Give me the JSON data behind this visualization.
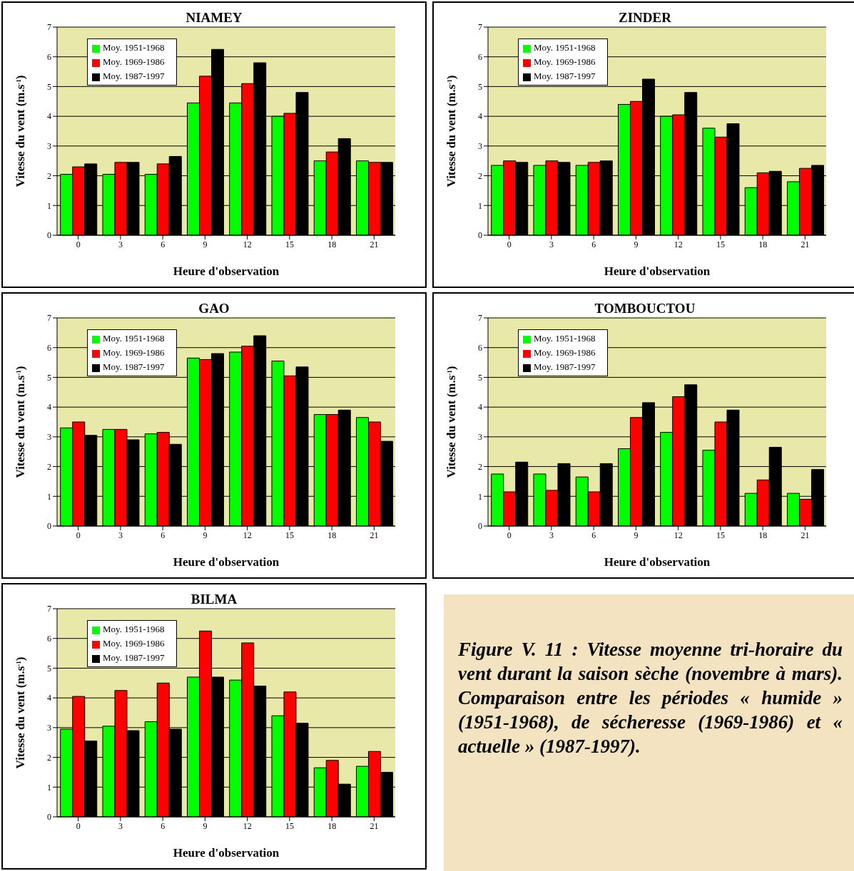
{
  "chart_data": [
    {
      "type": "bar",
      "title": "NIAMEY",
      "xlabel": "Heure d'observation",
      "ylabel": "Vitesse du vent (m.s$^{-1}$)",
      "categories": [
        "0",
        "3",
        "6",
        "9",
        "12",
        "15",
        "18",
        "21"
      ],
      "ylim": [
        0,
        7
      ],
      "yticks": [
        0,
        1,
        2,
        3,
        4,
        5,
        6,
        7
      ],
      "grid": "y",
      "legend": "top left",
      "series": [
        {
          "name": "Moy. 1951-1968",
          "color": "#00ff00",
          "values": [
            2.05,
            2.05,
            2.05,
            4.45,
            4.45,
            4.0,
            2.5,
            2.5
          ]
        },
        {
          "name": "Moy. 1969-1986",
          "color": "#ff0000",
          "values": [
            2.3,
            2.45,
            2.4,
            5.35,
            5.1,
            4.1,
            2.8,
            2.45
          ]
        },
        {
          "name": "Moy. 1987-1997",
          "color": "#000000",
          "values": [
            2.4,
            2.45,
            2.65,
            6.25,
            5.8,
            4.8,
            3.25,
            2.45
          ]
        }
      ]
    },
    {
      "type": "bar",
      "title": "ZINDER",
      "xlabel": "Heure d'observation",
      "ylabel": "Vitesse du vent (m.s$^{-1}$)",
      "categories": [
        "0",
        "3",
        "6",
        "9",
        "12",
        "15",
        "18",
        "21"
      ],
      "ylim": [
        0,
        7
      ],
      "yticks": [
        0,
        1,
        2,
        3,
        4,
        5,
        6,
        7
      ],
      "grid": "y",
      "legend": "top left",
      "series": [
        {
          "name": "Moy. 1951-1968",
          "color": "#00ff00",
          "values": [
            2.35,
            2.35,
            2.35,
            4.4,
            4.0,
            3.6,
            1.6,
            1.8
          ]
        },
        {
          "name": "Moy. 1969-1986",
          "color": "#ff0000",
          "values": [
            2.5,
            2.5,
            2.45,
            4.5,
            4.05,
            3.3,
            2.1,
            2.25
          ]
        },
        {
          "name": "Moy. 1987-1997",
          "color": "#000000",
          "values": [
            2.45,
            2.45,
            2.5,
            5.25,
            4.8,
            3.75,
            2.15,
            2.35
          ]
        }
      ]
    },
    {
      "type": "bar",
      "title": "GAO",
      "xlabel": "Heure d'observation",
      "ylabel": "Vitesse du vent (m.s$^{-1}$)",
      "categories": [
        "0",
        "3",
        "6",
        "9",
        "12",
        "15",
        "18",
        "21"
      ],
      "ylim": [
        0,
        7
      ],
      "yticks": [
        0,
        1,
        2,
        3,
        4,
        5,
        6,
        7
      ],
      "grid": "y",
      "legend": "top left",
      "series": [
        {
          "name": "Moy. 1951-1968",
          "color": "#00ff00",
          "values": [
            3.3,
            3.25,
            3.1,
            5.65,
            5.85,
            5.55,
            3.75,
            3.65
          ]
        },
        {
          "name": "Moy. 1969-1986",
          "color": "#ff0000",
          "values": [
            3.5,
            3.25,
            3.15,
            5.6,
            6.05,
            5.05,
            3.75,
            3.5
          ]
        },
        {
          "name": "Moy. 1987-1997",
          "color": "#000000",
          "values": [
            3.05,
            2.9,
            2.75,
            5.8,
            6.4,
            5.35,
            3.9,
            2.85
          ]
        }
      ]
    },
    {
      "type": "bar",
      "title": "TOMBOUCTOU",
      "xlabel": "Heure d'observation",
      "ylabel": "Vitesse du vent (m.s$^{-1}$)",
      "categories": [
        "0",
        "3",
        "6",
        "9",
        "12",
        "15",
        "18",
        "21"
      ],
      "ylim": [
        0,
        7
      ],
      "yticks": [
        0,
        1,
        2,
        3,
        4,
        5,
        6,
        7
      ],
      "grid": "y",
      "legend": "top left",
      "series": [
        {
          "name": "Moy. 1951-1968",
          "color": "#00ff00",
          "values": [
            1.75,
            1.75,
            1.65,
            2.6,
            3.15,
            2.55,
            1.1,
            1.1
          ]
        },
        {
          "name": "Moy. 1969-1986",
          "color": "#ff0000",
          "values": [
            1.15,
            1.2,
            1.15,
            3.65,
            4.35,
            3.5,
            1.55,
            0.9
          ]
        },
        {
          "name": "Moy. 1987-1997",
          "color": "#000000",
          "values": [
            2.15,
            2.1,
            2.1,
            4.15,
            4.75,
            3.9,
            2.65,
            1.9
          ]
        }
      ]
    },
    {
      "type": "bar",
      "title": "BILMA",
      "xlabel": "Heure d'observation",
      "ylabel": "Vitesse du vent (m.s$^{-1}$)",
      "categories": [
        "0",
        "3",
        "6",
        "9",
        "12",
        "15",
        "18",
        "21"
      ],
      "ylim": [
        0,
        7
      ],
      "yticks": [
        0,
        1,
        2,
        3,
        4,
        5,
        6,
        7
      ],
      "grid": "y",
      "legend": "top left",
      "series": [
        {
          "name": "Moy. 1951-1968",
          "color": "#00ff00",
          "values": [
            2.95,
            3.05,
            3.2,
            4.7,
            4.6,
            3.4,
            1.65,
            1.7
          ]
        },
        {
          "name": "Moy. 1969-1986",
          "color": "#ff0000",
          "values": [
            4.05,
            4.25,
            4.5,
            6.25,
            5.85,
            4.2,
            1.9,
            2.2
          ]
        },
        {
          "name": "Moy. 1987-1997",
          "color": "#000000",
          "values": [
            2.55,
            2.9,
            2.95,
            4.7,
            4.4,
            3.15,
            1.1,
            1.5
          ]
        }
      ]
    },
    {
      "type": "other",
      "annotations": [
        "Figure V. 11 : Vitesse moyenne tri-horaire du vent durant la saison sèche (novembre à mars). Comparaison entre les périodes « humide » (1951-1968), de sécheresse (1969-1986) et « actuelle » (1987-1997)."
      ]
    }
  ]
}
